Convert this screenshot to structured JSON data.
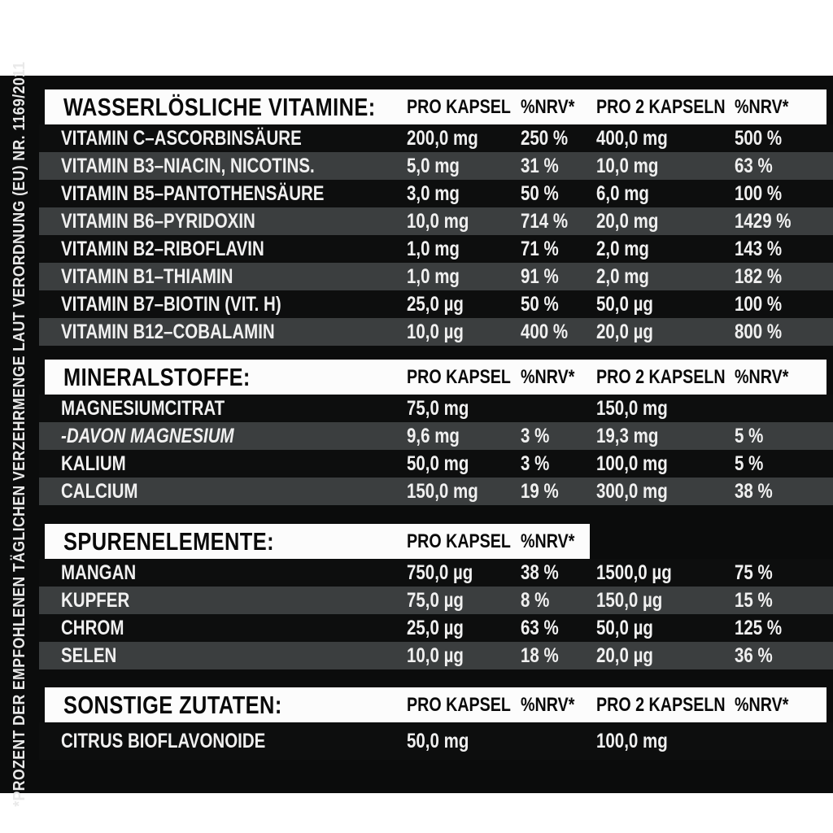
{
  "footnote": "*PROZENT DER EMPFOHLENEN TÄGLICHEN VERZEHRMENGE LAUT VERORDNUNG (EU) NR. 1169/2011",
  "colors": {
    "page_background": "#ffffff",
    "table_background": "#0b0c0c",
    "row_black": "#0d0e0e",
    "row_gray": "#3b3e3f",
    "band_white": "#fcfcfc",
    "text_light": "#f0f0f0",
    "text_dark": "#0a0a0a"
  },
  "sections": [
    {
      "title": "WASSERLÖSLICHE VITAMINE:",
      "col1": "PRO KAPSEL",
      "col2": "%NRV*",
      "col3": "PRO 2 KAPSELN",
      "col4": "%NRV*",
      "rows": [
        {
          "label": "VITAMIN C–ASCORBINSÄURE",
          "per1": "200,0 mg",
          "nrv1": "250 %",
          "per2": "400,0 mg",
          "nrv2": "500 %"
        },
        {
          "label": "VITAMIN B3–NIACIN, NICOTINS.",
          "per1": "5,0 mg",
          "nrv1": "31 %",
          "per2": "10,0 mg",
          "nrv2": "63 %"
        },
        {
          "label": "VITAMIN B5–PANTOTHENSÄURE",
          "per1": "3,0 mg",
          "nrv1": "50 %",
          "per2": "6,0 mg",
          "nrv2": "100 %"
        },
        {
          "label": "VITAMIN B6–PYRIDOXIN",
          "per1": "10,0 mg",
          "nrv1": "714 %",
          "per2": "20,0 mg",
          "nrv2": "1429 %"
        },
        {
          "label": "VITAMIN B2–RIBOFLAVIN",
          "per1": "1,0 mg",
          "nrv1": "71 %",
          "per2": "2,0 mg",
          "nrv2": "143 %"
        },
        {
          "label": "VITAMIN B1–THIAMIN",
          "per1": "1,0 mg",
          "nrv1": "91 %",
          "per2": "2,0 mg",
          "nrv2": "182 %"
        },
        {
          "label": "VITAMIN B7–BIOTIN (VIT. H)",
          "per1": "25,0 µg",
          "nrv1": "50 %",
          "per2": "50,0 µg",
          "nrv2": "100 %"
        },
        {
          "label": "VITAMIN B12–COBALAMIN",
          "per1": "10,0 µg",
          "nrv1": "400 %",
          "per2": "20,0 µg",
          "nrv2": "800 %"
        }
      ]
    },
    {
      "title": "MINERALSTOFFE:",
      "col1": "PRO KAPSEL",
      "col2": "%NRV*",
      "col3": "PRO 2 KAPSELN",
      "col4": "%NRV*",
      "rows": [
        {
          "label": "MAGNESIUMCITRAT",
          "per1": "75,0 mg",
          "nrv1": "",
          "per2": "150,0 mg",
          "nrv2": ""
        },
        {
          "label": "-DAVON MAGNESIUM",
          "italic": true,
          "per1": "9,6 mg",
          "nrv1": "3 %",
          "per2": "19,3 mg",
          "nrv2": "5 %"
        },
        {
          "label": "KALIUM",
          "per1": "50,0 mg",
          "nrv1": "3 %",
          "per2": "100,0 mg",
          "nrv2": "5 %"
        },
        {
          "label": "CALCIUM",
          "per1": "150,0 mg",
          "nrv1": "19 %",
          "per2": "300,0 mg",
          "nrv2": "38 %"
        }
      ]
    },
    {
      "title": "SPURENELEMENTE:",
      "col1": "PRO KAPSEL",
      "col2": "%NRV*",
      "col3": "",
      "col4": "",
      "short_band": true,
      "rows": [
        {
          "label": "MANGAN",
          "per1": "750,0 µg",
          "nrv1": "38 %",
          "per2": "1500,0 µg",
          "nrv2": "75 %"
        },
        {
          "label": "KUPFER",
          "per1": "75,0 µg",
          "nrv1": "8 %",
          "per2": "150,0 µg",
          "nrv2": "15 %"
        },
        {
          "label": "CHROM",
          "per1": "25,0 µg",
          "nrv1": "63 %",
          "per2": "50,0 µg",
          "nrv2": "125 %"
        },
        {
          "label": "SELEN",
          "per1": "10,0 µg",
          "nrv1": "18 %",
          "per2": "20,0 µg",
          "nrv2": "36 %"
        }
      ]
    },
    {
      "title": "SONSTIGE ZUTATEN:",
      "col1": "PRO KAPSEL",
      "col2": "%NRV*",
      "col3": "PRO 2 KAPSELN",
      "col4": "%NRV*",
      "tall_rows": true,
      "rows": [
        {
          "label": "CITRUS BIOFLAVONOIDE",
          "per1": "50,0 mg",
          "nrv1": "",
          "per2": "100,0 mg",
          "nrv2": ""
        }
      ]
    }
  ]
}
